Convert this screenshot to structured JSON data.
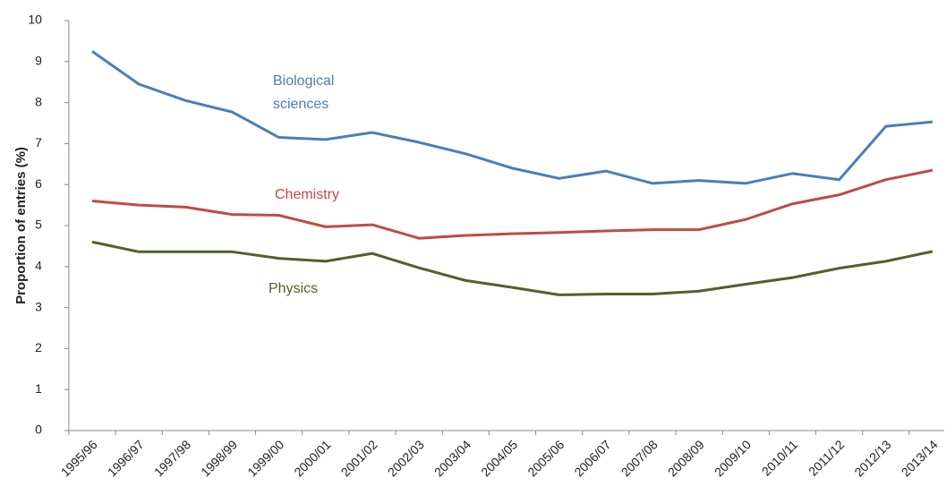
{
  "chart_data": {
    "type": "line",
    "ylabel": "Proportion of entries (%)",
    "categories": [
      "1995/96",
      "1996/97",
      "1997/98",
      "1998/99",
      "1999/00",
      "2000/01",
      "2001/02",
      "2002/03",
      "2003/04",
      "2004/05",
      "2005/06",
      "2006/07",
      "2007/08",
      "2008/09",
      "2009/10",
      "2010/11",
      "2011/12",
      "2012/13",
      "2013/14"
    ],
    "series": [
      {
        "name": "Biological sciences",
        "color": "#4a7ebb",
        "values": [
          9.25,
          8.45,
          8.05,
          7.77,
          7.15,
          7.1,
          7.27,
          7.03,
          6.75,
          6.4,
          6.15,
          6.33,
          6.03,
          6.1,
          6.03,
          6.27,
          6.12,
          7.42,
          7.53
        ]
      },
      {
        "name": "Chemistry",
        "color": "#be4b48",
        "values": [
          5.6,
          5.5,
          5.45,
          5.27,
          5.25,
          4.97,
          5.02,
          4.69,
          4.76,
          4.8,
          4.83,
          4.87,
          4.9,
          4.9,
          5.15,
          5.53,
          5.75,
          6.12,
          6.35
        ]
      },
      {
        "name": "Physics",
        "color": "#4f6228",
        "values": [
          4.6,
          4.36,
          4.36,
          4.36,
          4.2,
          4.13,
          4.32,
          3.97,
          3.66,
          3.49,
          3.31,
          3.33,
          3.33,
          3.4,
          3.57,
          3.73,
          3.96,
          4.13,
          4.37
        ]
      }
    ],
    "ylim": [
      0,
      10
    ],
    "yticks": [
      0,
      1,
      2,
      3,
      4,
      5,
      6,
      7,
      8,
      9,
      10
    ],
    "grid": false
  }
}
